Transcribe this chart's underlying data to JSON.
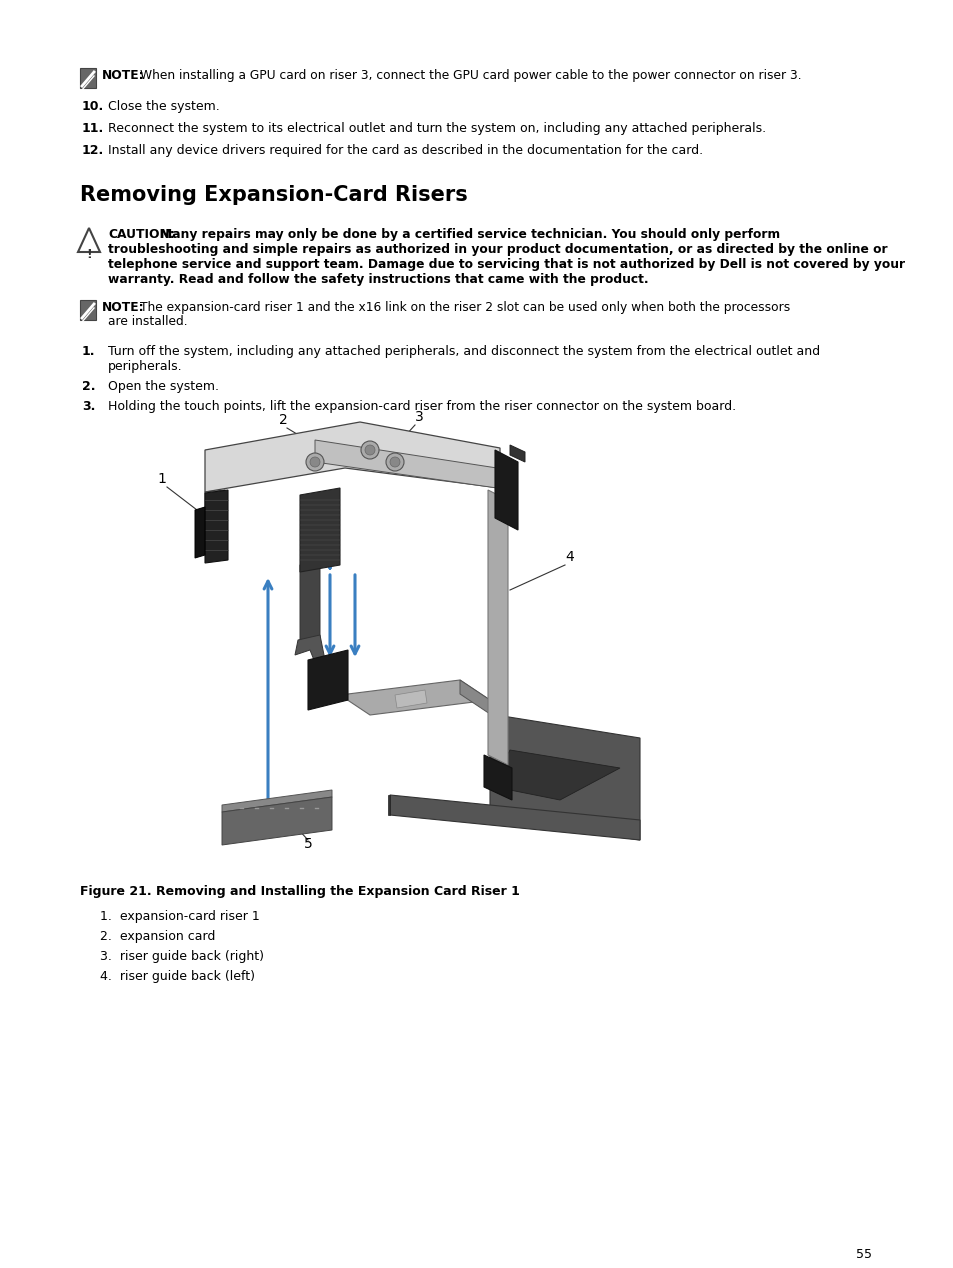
{
  "background_color": "#ffffff",
  "page_number": "55",
  "section_title": "Removing Expansion-Card Risers",
  "note_text_top": "NOTE: When installing a GPU card on riser 3, connect the GPU card power cable to the power connector on riser 3.",
  "steps_top": [
    {
      "num": "10.",
      "text": "Close the system."
    },
    {
      "num": "11.",
      "text": "Reconnect the system to its electrical outlet and turn the system on, including any attached peripherals."
    },
    {
      "num": "12.",
      "text": "Install any device drivers required for the card as described in the documentation for the card."
    }
  ],
  "caution_lines": [
    "CAUTION: Many repairs may only be done by a certified service technician. You should only perform",
    "troubleshooting and simple repairs as authorized in your product documentation, or as directed by the online or",
    "telephone service and support team. Damage due to servicing that is not authorized by Dell is not covered by your",
    "warranty. Read and follow the safety instructions that came with the product."
  ],
  "note_mid_line1": "NOTE: The expansion-card riser 1 and the x16 link on the riser 2 slot can be used only when both the processors",
  "note_mid_line2": "are installed.",
  "steps_main": [
    {
      "num": "1.",
      "text1": "Turn off the system, including any attached peripherals, and disconnect the system from the electrical outlet and",
      "text2": "peripherals."
    },
    {
      "num": "2.",
      "text1": "Open the system.",
      "text2": ""
    },
    {
      "num": "3.",
      "text1": "Holding the touch points, lift the expansion-card riser from the riser connector on the system board.",
      "text2": ""
    }
  ],
  "figure_caption": "Figure 21. Removing and Installing the Expansion Card Riser 1",
  "legend": [
    "expansion-card riser 1",
    "expansion card",
    "riser guide back (right)",
    "riser guide back (left)"
  ],
  "text_color": "#000000",
  "blue_arrow": "#3a7fc1"
}
